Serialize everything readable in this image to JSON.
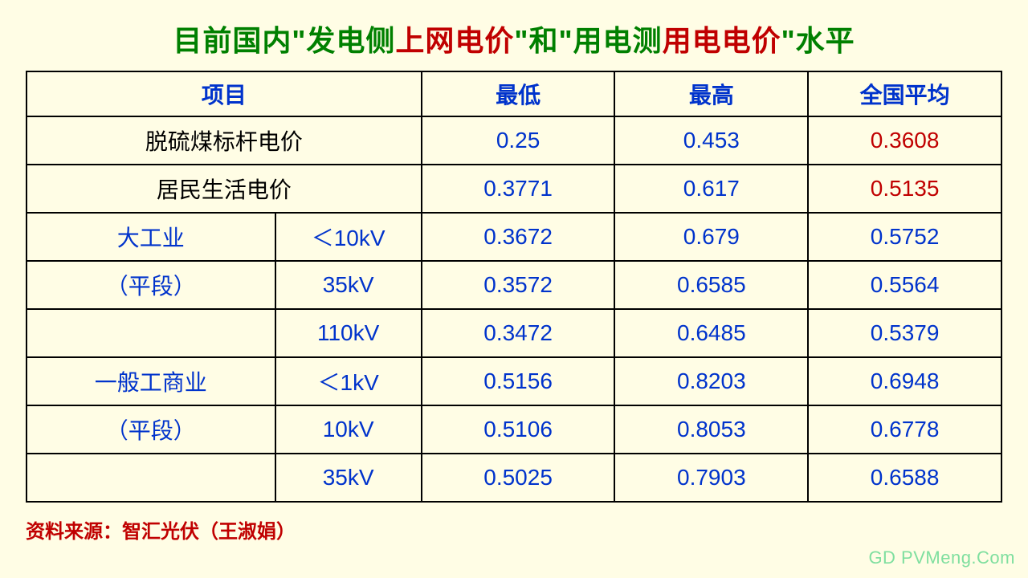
{
  "colors": {
    "background": "#fffde5",
    "border": "#000000",
    "title_green": "#008000",
    "title_red": "#c00000",
    "header_blue": "#0033cc",
    "data_blue": "#0033cc",
    "data_red": "#c00000",
    "row_label_black": "#000000",
    "source_red": "#c00000",
    "watermark": "#7fdf9f"
  },
  "title_segments": [
    {
      "text": "目前国内\"发电侧",
      "color": "#008000"
    },
    {
      "text": "上网电价",
      "color": "#c00000"
    },
    {
      "text": "\"和\"用电测",
      "color": "#008000"
    },
    {
      "text": "用电电价",
      "color": "#c00000"
    },
    {
      "text": "\"水平",
      "color": "#008000"
    }
  ],
  "headers": {
    "project": "项目",
    "min": "最低",
    "max": "最高",
    "avg": "全国平均"
  },
  "rows": [
    {
      "label1": "脱硫煤标杆电价",
      "span": 2,
      "min": "0.25",
      "max": "0.453",
      "avg": "0.3608",
      "avg_color": "#c00000",
      "label1_color": "#000000"
    },
    {
      "label1": "居民生活电价",
      "span": 2,
      "min": "0.3771",
      "max": "0.617",
      "avg": "0.5135",
      "avg_color": "#c00000",
      "label1_color": "#000000"
    },
    {
      "label1": "大工业",
      "label2": "＜10kV",
      "min": "0.3672",
      "max": "0.679",
      "avg": "0.5752",
      "avg_color": "#0033cc",
      "label1_color": "#0033cc"
    },
    {
      "label1": "（平段）",
      "label2": "35kV",
      "min": "0.3572",
      "max": "0.6585",
      "avg": "0.5564",
      "avg_color": "#0033cc",
      "label1_color": "#0033cc"
    },
    {
      "label1": "",
      "label2": "110kV",
      "min": "0.3472",
      "max": "0.6485",
      "avg": "0.5379",
      "avg_color": "#0033cc",
      "label1_color": "#0033cc"
    },
    {
      "label1": "一般工商业",
      "label2": "＜1kV",
      "min": "0.5156",
      "max": "0.8203",
      "avg": "0.6948",
      "avg_color": "#0033cc",
      "label1_color": "#0033cc"
    },
    {
      "label1": "（平段）",
      "label2": "10kV",
      "min": "0.5106",
      "max": "0.8053",
      "avg": "0.6778",
      "avg_color": "#0033cc",
      "label1_color": "#0033cc"
    },
    {
      "label1": "",
      "label2": "35kV",
      "min": "0.5025",
      "max": "0.7903",
      "avg": "0.6588",
      "avg_color": "#0033cc",
      "label1_color": "#0033cc"
    }
  ],
  "source": "资料来源：智汇光伏（王淑娟）",
  "watermark": "GD PVMeng.Com"
}
